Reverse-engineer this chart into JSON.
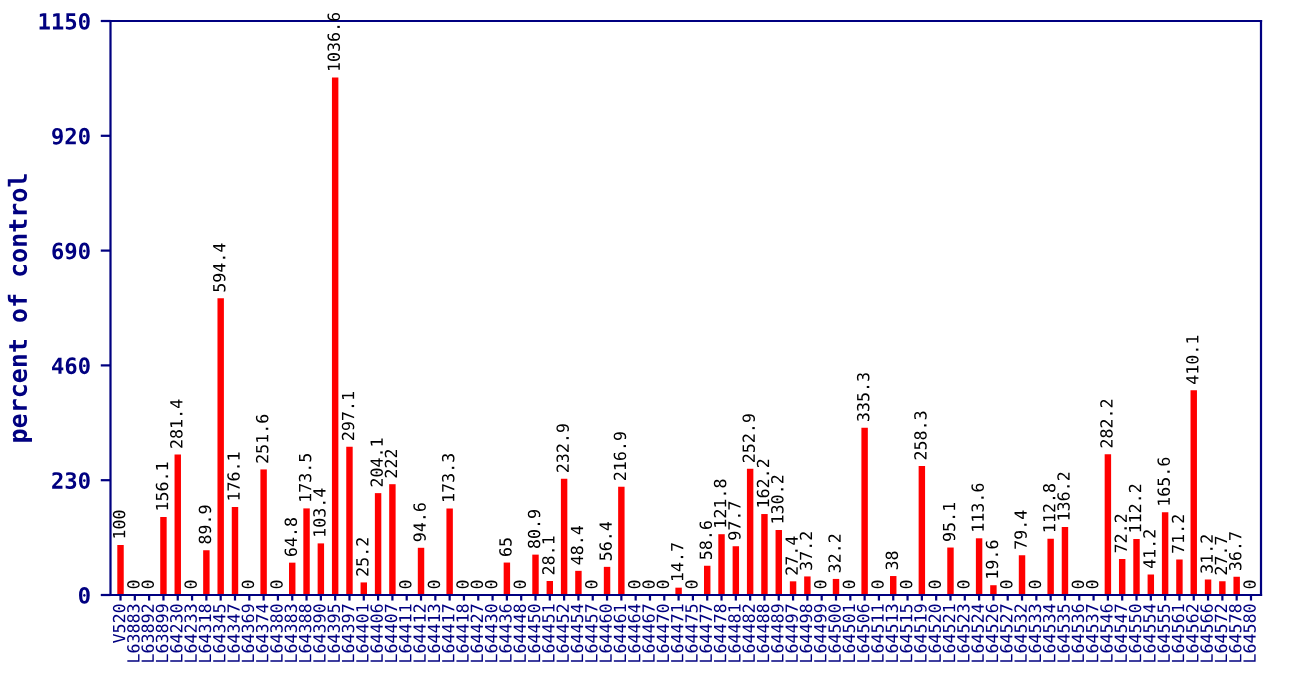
{
  "chart_data": {
    "type": "bar",
    "ylabel": "percent of control",
    "categories": [
      "V520",
      "L63883",
      "L63892",
      "L63899",
      "L64230",
      "L64233",
      "L64318",
      "L64345",
      "L64347",
      "L64369",
      "L64374",
      "L64380",
      "L64383",
      "L64388",
      "L64390",
      "L64395",
      "L64397",
      "L64401",
      "L64406",
      "L64407",
      "L64411",
      "L64412",
      "L64413",
      "L64417",
      "L64418",
      "L64427",
      "L64430",
      "L64436",
      "L64448",
      "L64450",
      "L64451",
      "L64452",
      "L64454",
      "L64457",
      "L64460",
      "L64461",
      "L64464",
      "L64467",
      "L64470",
      "L64471",
      "L64475",
      "L64477",
      "L64478",
      "L64481",
      "L64482",
      "L64488",
      "L64489",
      "L64497",
      "L64498",
      "L64499",
      "L64500",
      "L64501",
      "L64506",
      "L64511",
      "L64513",
      "L64515",
      "L64519",
      "L64520",
      "L64521",
      "L64523",
      "L64524",
      "L64526",
      "L64527",
      "L64532",
      "L64533",
      "L64534",
      "L64535",
      "L64536",
      "L64537",
      "L64546",
      "L64547",
      "L64550",
      "L64554",
      "L64555",
      "L64561",
      "L64562",
      "L64566",
      "L64572",
      "L64578",
      "L64580"
    ],
    "values": [
      100,
      0,
      0,
      156.1,
      281.4,
      0,
      89.9,
      594.4,
      176.1,
      0,
      251.6,
      0,
      64.8,
      173.5,
      103.4,
      1036.6,
      297.1,
      25.2,
      204.1,
      222,
      0,
      94.6,
      0,
      173.3,
      0,
      0,
      0,
      65,
      0,
      80.9,
      28.1,
      232.9,
      48.4,
      0,
      56.4,
      216.9,
      0,
      0,
      0,
      14.7,
      0,
      58.6,
      121.8,
      97.7,
      252.9,
      162.2,
      130.2,
      27.4,
      37.2,
      0,
      32.2,
      0,
      335.3,
      0,
      38,
      0,
      258.3,
      0,
      95.1,
      0,
      113.6,
      19.6,
      0,
      79.4,
      0,
      112.8,
      136.2,
      0,
      0,
      282.2,
      72.2,
      112.2,
      41.2,
      165.6,
      71.2,
      410.1,
      31.2,
      27.7,
      36.7,
      0
    ],
    "color": "#ff0000",
    "ylim": [
      0,
      1150
    ],
    "yticks": [
      0,
      230,
      460,
      690,
      920,
      1150
    ],
    "data_labels": true,
    "grid": false
  }
}
